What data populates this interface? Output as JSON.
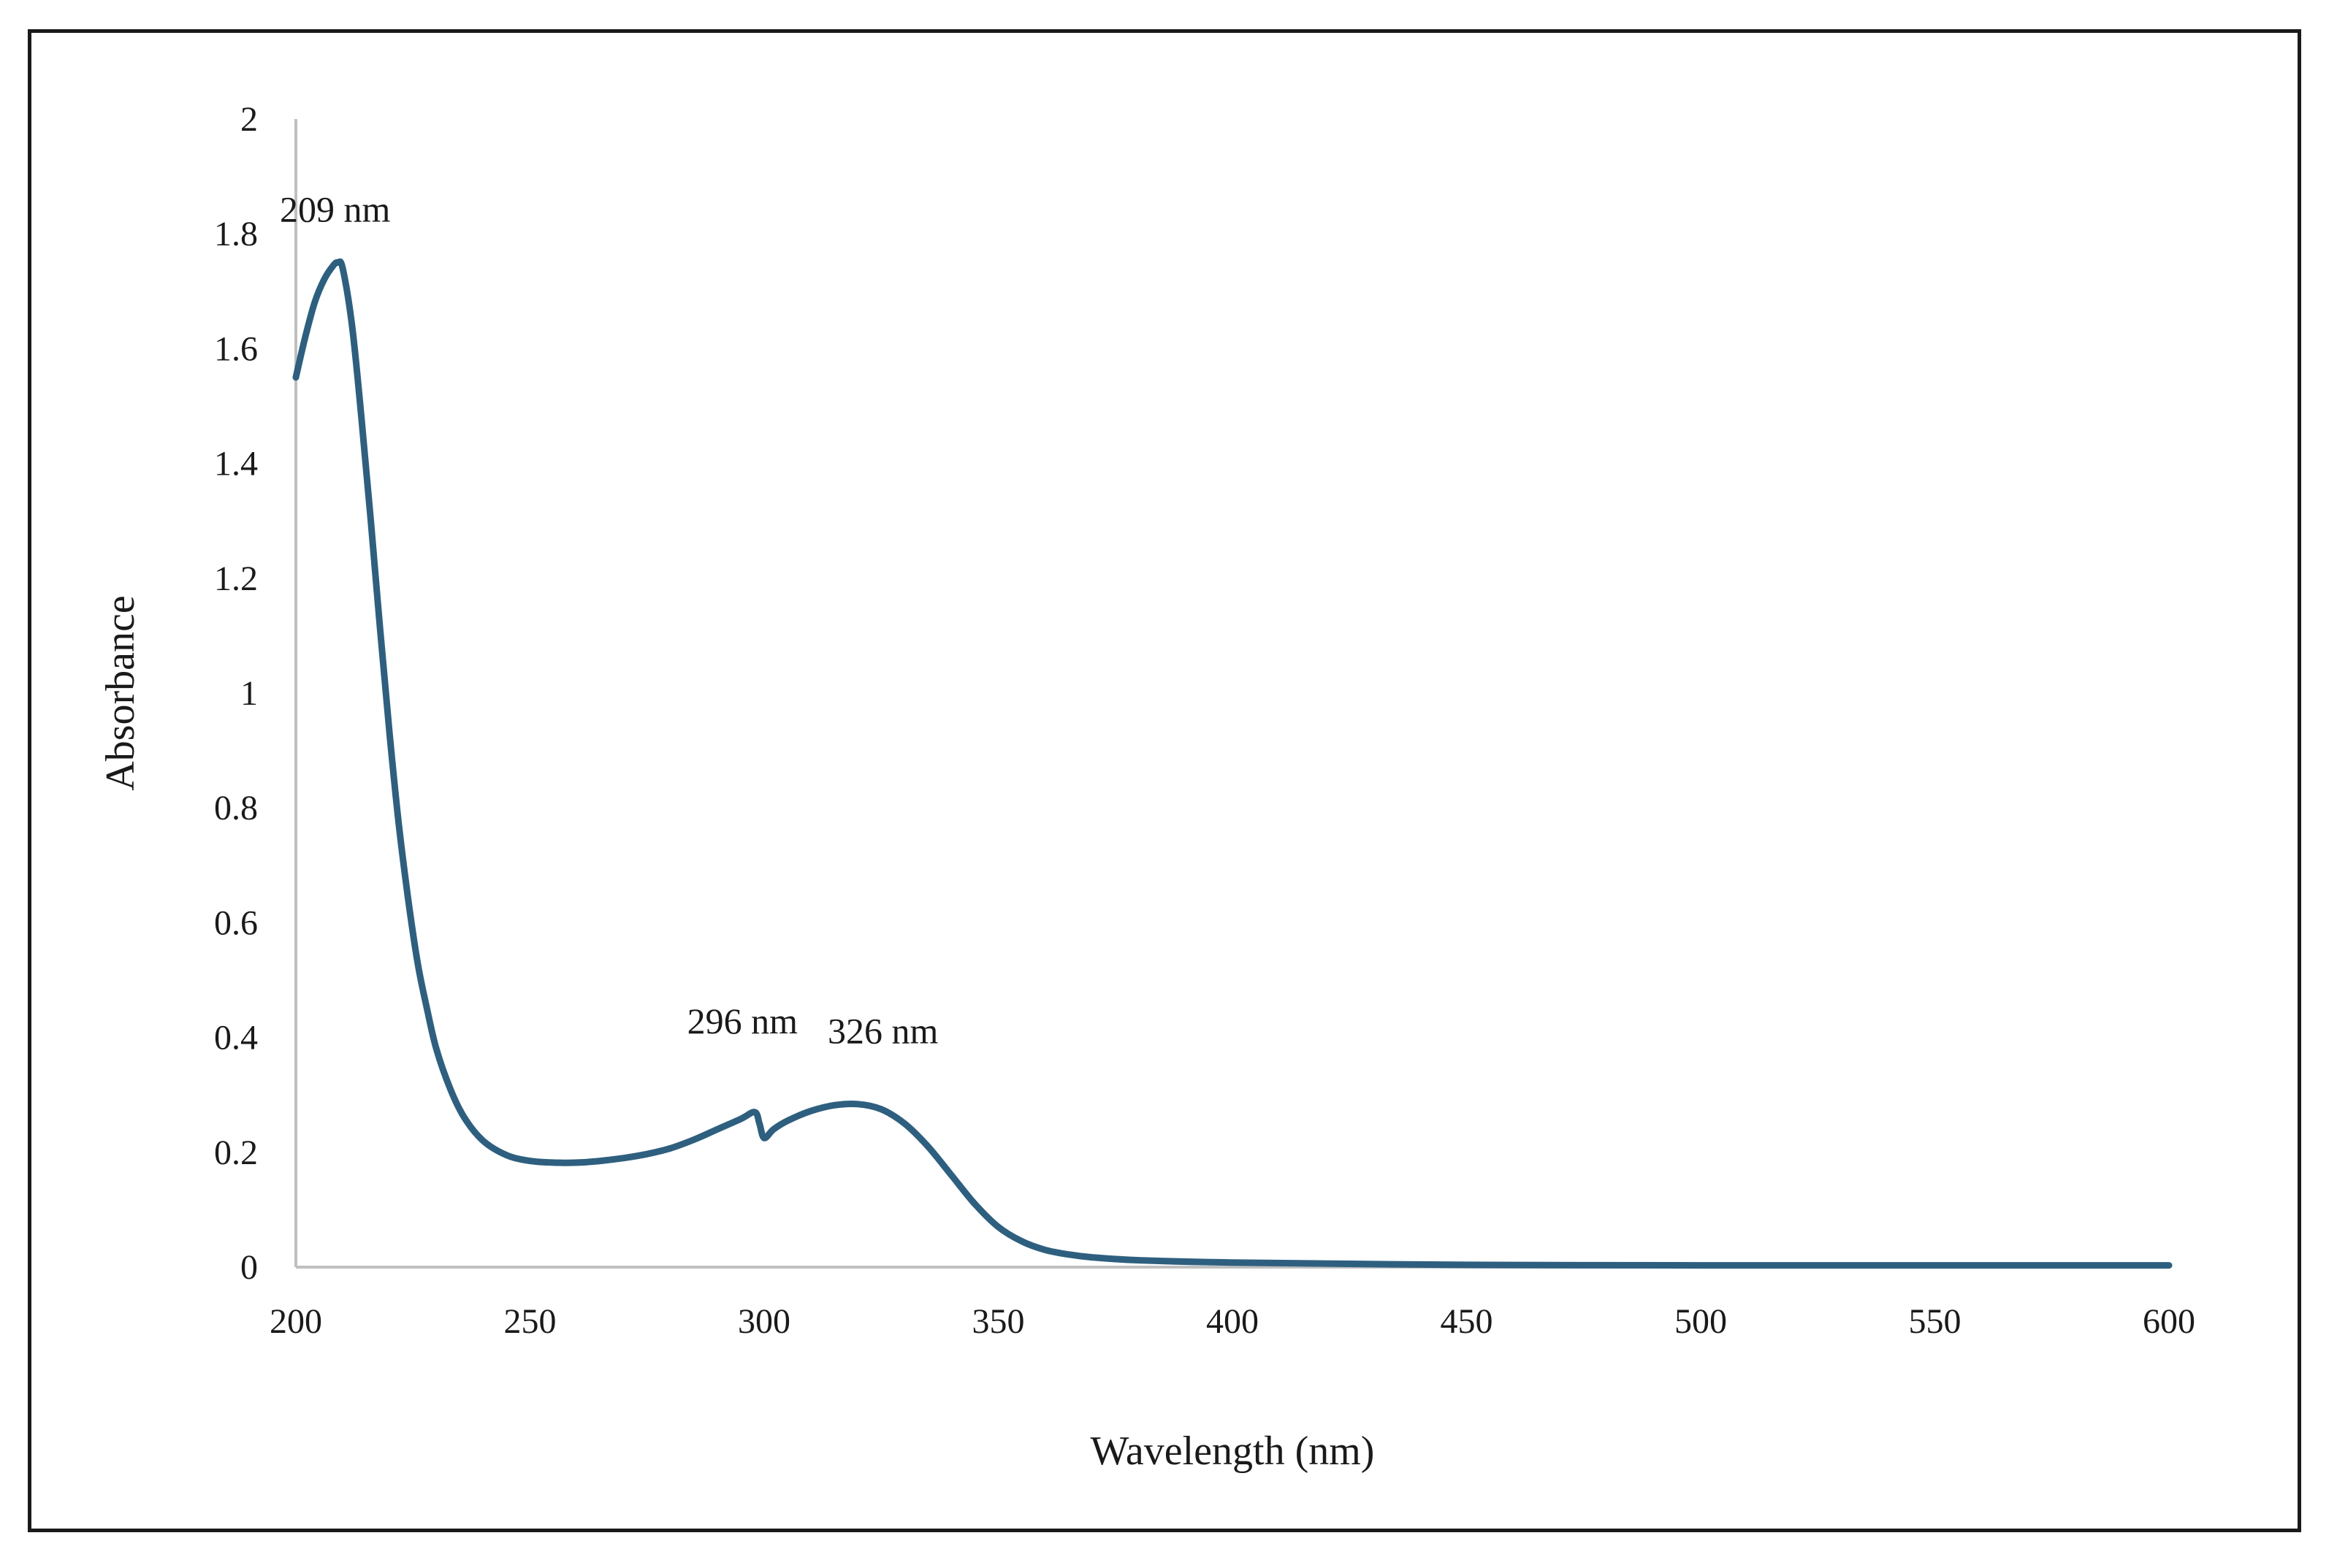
{
  "chart_data": {
    "type": "line",
    "title": "",
    "xlabel": "Wavelength (nm)",
    "ylabel": "Absorbance",
    "xlim": [
      200,
      600
    ],
    "ylim": [
      0,
      2
    ],
    "grid": false,
    "x_ticks": [
      200,
      250,
      300,
      350,
      400,
      450,
      500,
      550,
      600
    ],
    "x_tick_labels": [
      "200",
      "250",
      "300",
      "350",
      "400",
      "450",
      "500",
      "550",
      "600"
    ],
    "y_ticks": [
      0,
      0.2,
      0.4,
      0.6,
      0.8,
      1,
      1.2,
      1.4,
      1.6,
      1.8,
      2
    ],
    "y_tick_labels": [
      "0",
      "0.2",
      "0.4",
      "0.6",
      "0.8",
      "1",
      "1.2",
      "1.4",
      "1.6",
      "1.8",
      "2"
    ],
    "series": [
      {
        "name": "Absorbance",
        "color": "#2e5f7f",
        "x": [
          200,
          202,
          204,
          206,
          208,
          209,
          210,
          212,
          214,
          216,
          218,
          220,
          222,
          224,
          226,
          228,
          230,
          233,
          236,
          240,
          245,
          250,
          255,
          260,
          265,
          270,
          275,
          280,
          285,
          290,
          295,
          298,
          299,
          300,
          302,
          305,
          310,
          315,
          320,
          325,
          330,
          335,
          340,
          345,
          350,
          355,
          360,
          365,
          370,
          380,
          400,
          450,
          500,
          550,
          600
        ],
        "y": [
          1.55,
          1.62,
          1.68,
          1.72,
          1.745,
          1.75,
          1.74,
          1.64,
          1.48,
          1.3,
          1.11,
          0.93,
          0.77,
          0.64,
          0.53,
          0.45,
          0.38,
          0.31,
          0.26,
          0.22,
          0.195,
          0.185,
          0.182,
          0.182,
          0.185,
          0.19,
          0.197,
          0.207,
          0.222,
          0.24,
          0.258,
          0.27,
          0.25,
          0.225,
          0.24,
          0.255,
          0.272,
          0.282,
          0.284,
          0.275,
          0.25,
          0.21,
          0.16,
          0.11,
          0.07,
          0.045,
          0.03,
          0.022,
          0.017,
          0.012,
          0.008,
          0.004,
          0.003,
          0.003,
          0.003
        ]
      }
    ],
    "annotations": [
      {
        "text": "209 nm",
        "x": 209,
        "y": 1.75
      },
      {
        "text": "296 nm",
        "x": 296,
        "y": 0.42
      },
      {
        "text": "326 nm",
        "x": 326,
        "y": 0.39
      }
    ]
  }
}
